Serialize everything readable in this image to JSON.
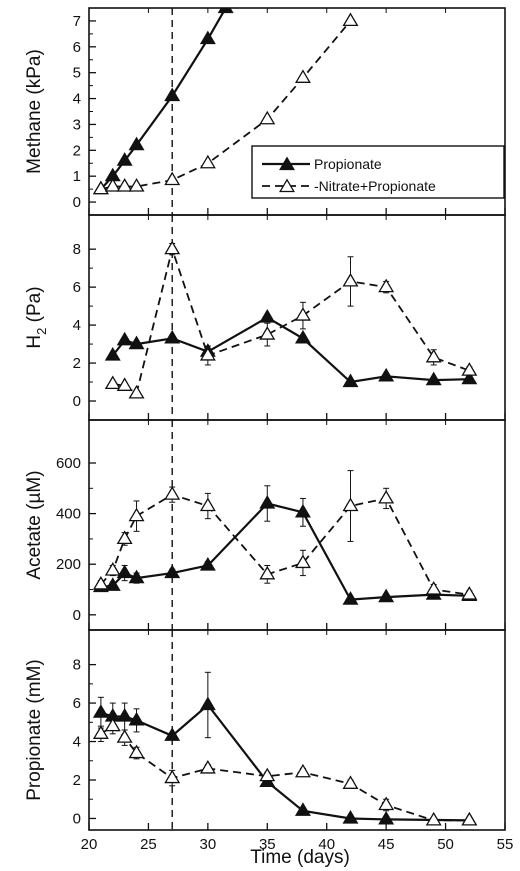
{
  "figure": {
    "xlabel": "Time (days)",
    "x_ticks": [
      20,
      25,
      30,
      35,
      40,
      45,
      50,
      55
    ],
    "xlim": [
      20,
      55
    ],
    "vline_x": 27,
    "colors": {
      "axis": "#111111",
      "series_line": "#111111",
      "open_fill": "#ffffff",
      "filled": "#111111"
    }
  },
  "legend": {
    "placement": "top-right of top panel",
    "entries": [
      "Propionate",
      "-Nitrate+Propionate"
    ]
  },
  "chart_data": [
    {
      "type": "line",
      "ylabel": "Methane (kPa)",
      "ylim": [
        -0.5,
        7.5
      ],
      "y_ticks": [
        0,
        1,
        2,
        3,
        4,
        5,
        6,
        7
      ],
      "series": [
        {
          "name": "Propionate",
          "marker": "filled-triangle",
          "style": "solid",
          "x": [
            21,
            22,
            23,
            24,
            27,
            30,
            31.5
          ],
          "y": [
            0.5,
            1.0,
            1.6,
            2.2,
            4.1,
            6.3,
            7.5
          ]
        },
        {
          "name": "-Nitrate+Propionate",
          "marker": "open-triangle",
          "style": "dashed",
          "x": [
            21,
            22,
            23,
            24,
            27,
            30,
            35,
            38,
            42
          ],
          "y": [
            0.5,
            0.6,
            0.6,
            0.6,
            0.85,
            1.5,
            3.2,
            4.8,
            7.0
          ]
        }
      ]
    },
    {
      "type": "line",
      "ylabel": "H",
      "ylabel_sub": "2",
      "ylabel_unit": " (Pa)",
      "ylim": [
        -1,
        9.8
      ],
      "y_ticks": [
        0,
        2,
        4,
        6,
        8
      ],
      "series": [
        {
          "name": "Propionate",
          "marker": "filled-triangle",
          "style": "solid",
          "x": [
            22,
            23,
            24,
            27,
            30,
            35,
            38,
            42,
            45,
            49,
            52
          ],
          "y": [
            2.4,
            3.2,
            3.0,
            3.3,
            2.6,
            4.4,
            3.3,
            1.0,
            1.3,
            1.1,
            1.15
          ]
        },
        {
          "name": "-Nitrate+Propionate",
          "marker": "open-triangle",
          "style": "dashed",
          "x": [
            22,
            23,
            24,
            27,
            30,
            35,
            38,
            42,
            45,
            49,
            52
          ],
          "y": [
            0.9,
            0.8,
            0.4,
            8.0,
            2.4,
            3.5,
            4.5,
            6.3,
            6.0,
            2.3,
            1.6
          ],
          "err": [
            0,
            0,
            0,
            0.3,
            0.5,
            0.6,
            0.7,
            1.3,
            0.3,
            0.4,
            0.2
          ]
        }
      ]
    },
    {
      "type": "line",
      "ylabel": "Acetate (µM)",
      "ylim": [
        -60,
        770
      ],
      "y_ticks": [
        0,
        200,
        400,
        600
      ],
      "series": [
        {
          "name": "Propionate",
          "marker": "filled-triangle",
          "style": "solid",
          "x": [
            21,
            22,
            23,
            24,
            27,
            30,
            35,
            38,
            42,
            45,
            49,
            52
          ],
          "y": [
            110,
            115,
            165,
            145,
            165,
            195,
            440,
            405,
            60,
            70,
            80,
            75
          ],
          "err": [
            15,
            15,
            30,
            20,
            15,
            15,
            70,
            55,
            10,
            10,
            10,
            15
          ]
        },
        {
          "name": "-Nitrate+Propionate",
          "marker": "open-triangle",
          "style": "dashed",
          "x": [
            21,
            22,
            23,
            24,
            27,
            30,
            35,
            38,
            42,
            45,
            49,
            52
          ],
          "y": [
            120,
            175,
            300,
            390,
            475,
            430,
            160,
            205,
            430,
            460,
            100,
            80
          ],
          "err": [
            15,
            20,
            25,
            60,
            30,
            50,
            35,
            50,
            140,
            40,
            20,
            15
          ]
        }
      ]
    },
    {
      "type": "line",
      "ylabel": "Propionate (mM)",
      "ylim": [
        -0.6,
        9.8
      ],
      "y_ticks": [
        0,
        2,
        4,
        6,
        8
      ],
      "series": [
        {
          "name": "Propionate",
          "marker": "filled-triangle",
          "style": "solid",
          "x": [
            21,
            22,
            23,
            24,
            27,
            30,
            35,
            38,
            42,
            45,
            52
          ],
          "y": [
            5.5,
            5.3,
            5.3,
            5.1,
            4.3,
            5.9,
            1.9,
            0.4,
            0.0,
            -0.05,
            -0.1
          ],
          "err": [
            0.8,
            0.7,
            0.7,
            0.6,
            0,
            1.7,
            0,
            0,
            0,
            0,
            0
          ]
        },
        {
          "name": "-Nitrate+Propionate",
          "marker": "open-triangle",
          "style": "dashed",
          "x": [
            21,
            22,
            23,
            24,
            27,
            30,
            35,
            38,
            42,
            45,
            49,
            52
          ],
          "y": [
            4.4,
            4.8,
            4.2,
            3.4,
            2.1,
            2.6,
            2.2,
            2.4,
            1.8,
            0.7,
            -0.1,
            -0.1
          ],
          "err": [
            0.4,
            0.4,
            0.4,
            0.3,
            0.4,
            0.2,
            0.2,
            0.2,
            0.2,
            0.3,
            0,
            0
          ]
        }
      ]
    }
  ]
}
